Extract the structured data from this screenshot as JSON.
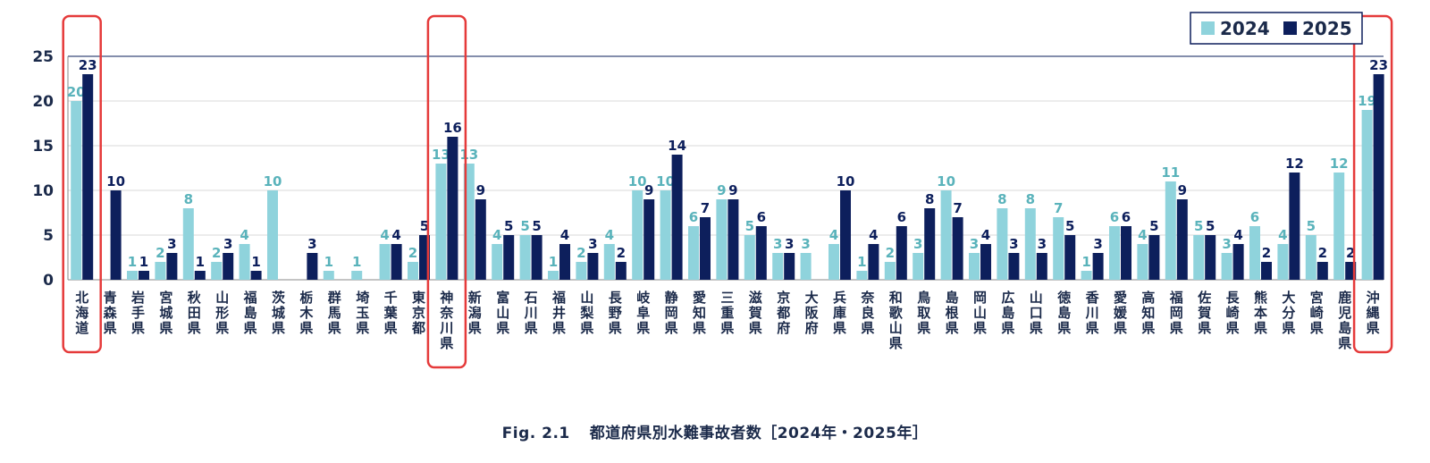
{
  "chart_data": {
    "type": "bar",
    "categories": [
      "北海道",
      "青森県",
      "岩手県",
      "宮城県",
      "秋田県",
      "山形県",
      "福島県",
      "茨城県",
      "栃木県",
      "群馬県",
      "埼玉県",
      "千葉県",
      "東京都",
      "神奈川県",
      "新潟県",
      "富山県",
      "石川県",
      "福井県",
      "山梨県",
      "長野県",
      "岐阜県",
      "静岡県",
      "愛知県",
      "三重県",
      "滋賀県",
      "京都府",
      "大阪府",
      "兵庫県",
      "奈良県",
      "和歌山県",
      "鳥取県",
      "島根県",
      "岡山県",
      "広島県",
      "山口県",
      "徳島県",
      "香川県",
      "愛媛県",
      "高知県",
      "福岡県",
      "佐賀県",
      "長崎県",
      "熊本県",
      "大分県",
      "宮崎県",
      "鹿児島県",
      "沖縄県"
    ],
    "series": [
      {
        "name": "2024",
        "color": "#8fd3dc",
        "label_color": "#5ab3bb",
        "values": [
          20,
          0,
          1,
          2,
          8,
          2,
          4,
          10,
          0,
          1,
          1,
          4,
          2,
          13,
          13,
          4,
          5,
          1,
          2,
          4,
          10,
          10,
          6,
          9,
          5,
          3,
          3,
          4,
          1,
          2,
          3,
          10,
          3,
          8,
          8,
          7,
          1,
          6,
          4,
          11,
          5,
          3,
          6,
          4,
          5,
          12,
          19
        ]
      },
      {
        "name": "2025",
        "color": "#0d1f5c",
        "label_color": "#0d1f5c",
        "values": [
          23,
          10,
          1,
          3,
          1,
          3,
          1,
          0,
          3,
          0,
          0,
          4,
          5,
          16,
          9,
          5,
          5,
          4,
          3,
          2,
          9,
          14,
          7,
          9,
          6,
          3,
          0,
          10,
          4,
          6,
          8,
          7,
          4,
          3,
          3,
          5,
          3,
          6,
          5,
          9,
          5,
          4,
          2,
          12,
          2,
          2,
          23
        ]
      }
    ],
    "ylim": [
      0,
      25
    ],
    "yticks": [
      0,
      5,
      10,
      15,
      20,
      25
    ],
    "legend": "top-right",
    "highlighted": [
      "北海道",
      "神奈川県",
      "沖縄県"
    ],
    "highlight_color": "#e53a3a"
  },
  "caption": {
    "fig_label": "Fig. 2.1",
    "title": "都道府県別水難事故者数［2024年・2025年］"
  }
}
